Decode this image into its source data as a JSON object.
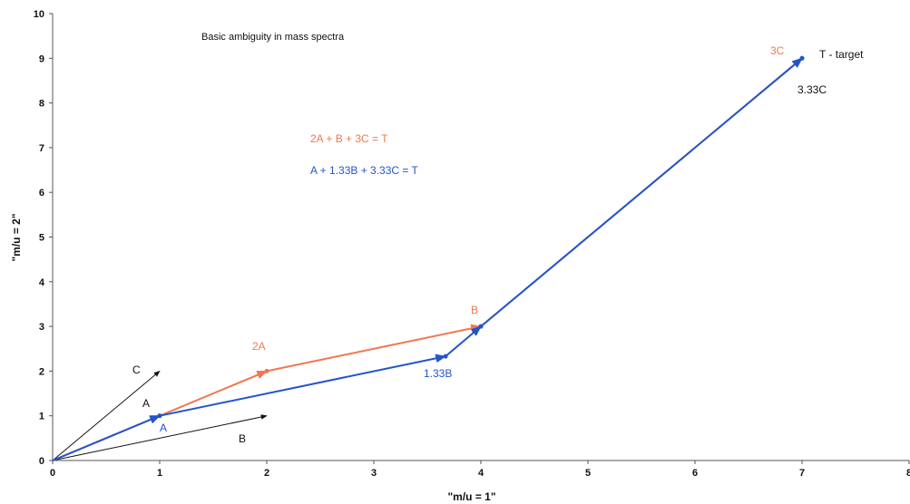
{
  "chart_data": {
    "type": "line",
    "title": "Basic ambiguity in mass spectra",
    "xlabel": "\"m/u = 1\"",
    "ylabel": "\"m/u = 2\"",
    "xlim": [
      0,
      8
    ],
    "ylim": [
      0,
      10
    ],
    "x_ticks": [
      "0",
      "1",
      "2",
      "3",
      "4",
      "5",
      "6",
      "7",
      "8"
    ],
    "y_ticks": [
      "0",
      "1",
      "2",
      "3",
      "4",
      "5",
      "6",
      "7",
      "8",
      "9",
      "10"
    ],
    "grid": false,
    "colors": {
      "orange": "#f07850",
      "blue": "#2255cc",
      "black": "#111111",
      "axis": "#555555"
    },
    "series": [
      {
        "id": "orange_path",
        "color": "#f07850",
        "x": [
          0,
          1,
          2,
          4,
          7
        ],
        "y": [
          0,
          1,
          2,
          3,
          9
        ]
      },
      {
        "id": "blue_path",
        "color": "#2255cc",
        "x": [
          0,
          1,
          3.67,
          4,
          7
        ],
        "y": [
          0,
          1,
          2.33,
          3,
          9
        ]
      }
    ],
    "vectors": [
      {
        "id": "vector_c",
        "from": [
          0,
          0
        ],
        "to": [
          1,
          2
        ],
        "color": "#111111"
      },
      {
        "id": "vector_a",
        "from": [
          0,
          0
        ],
        "to": [
          1,
          1
        ],
        "color": "#111111"
      },
      {
        "id": "vector_b",
        "from": [
          0,
          0
        ],
        "to": [
          2,
          1
        ],
        "color": "#111111"
      }
    ],
    "annotations": {
      "c": "C",
      "a_black": "A",
      "a_blue": "A",
      "b_black": "B",
      "two_a": "2A",
      "b_orange": "B",
      "one_33b": "1.33B",
      "three_c": "3C",
      "target": "T - target",
      "three_33c": "3.33C",
      "eq_orange": "2A + B + 3C = T",
      "eq_blue": "A + 1.33B + 3.33C = T"
    }
  }
}
